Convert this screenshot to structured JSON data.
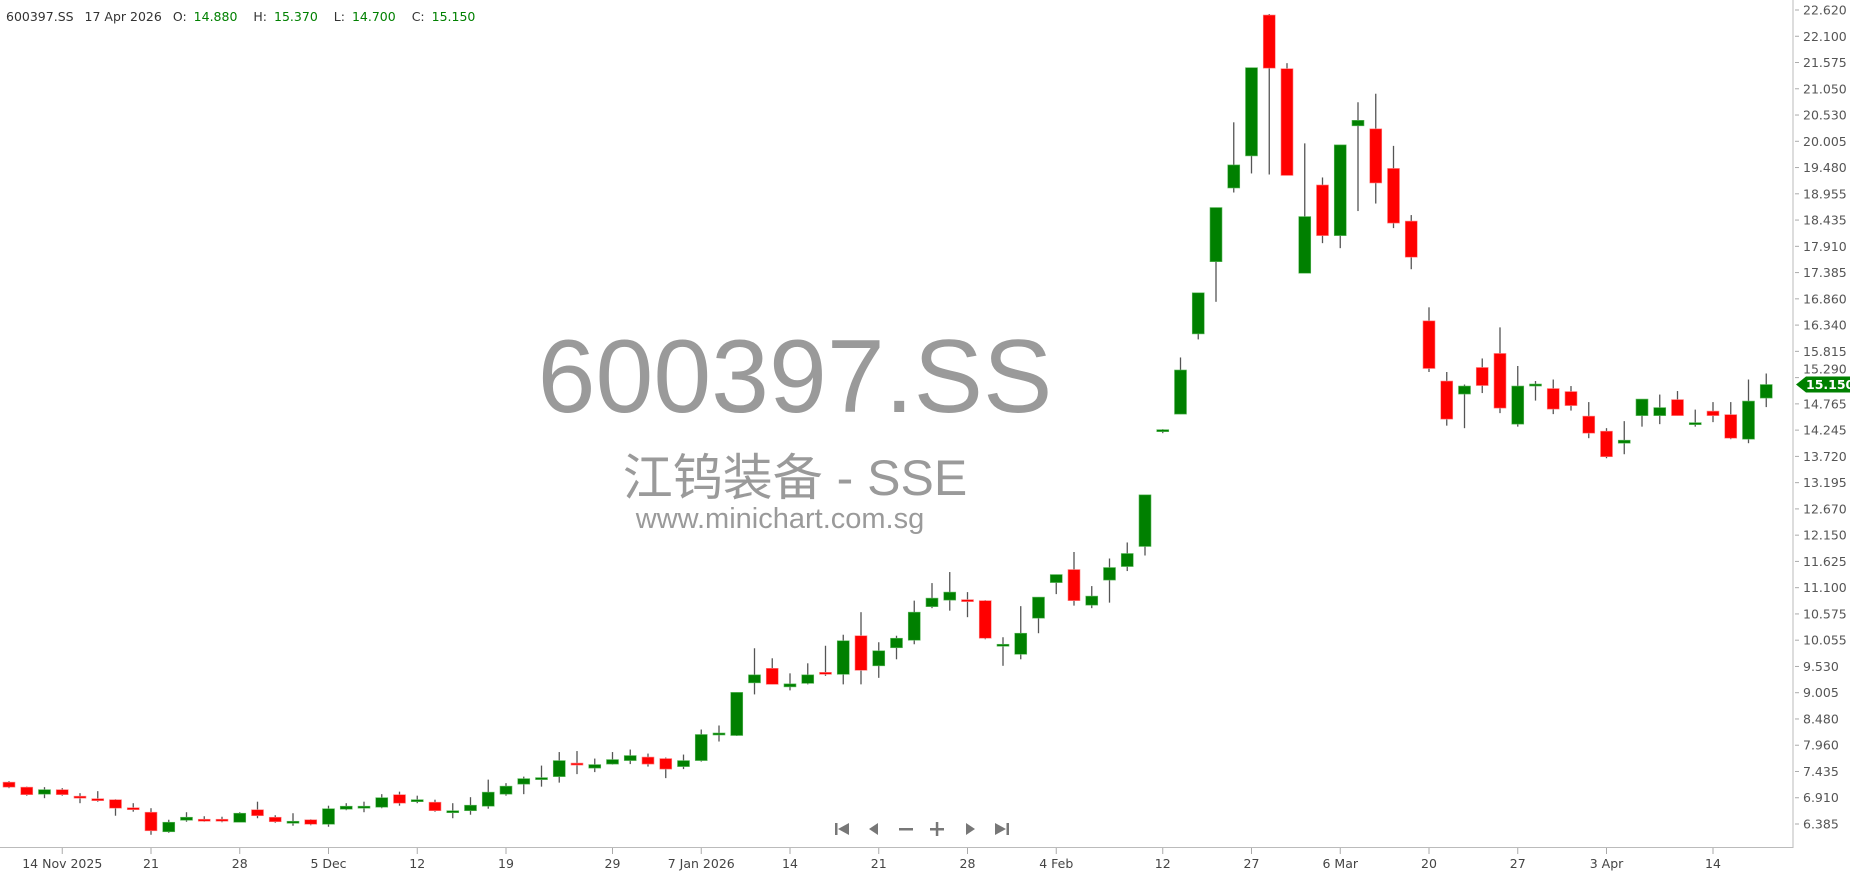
{
  "header": {
    "symbol": "600397.SS",
    "date": "17 Apr 2026",
    "open_label": "O:",
    "open": "14.880",
    "high_label": "H:",
    "high": "15.370",
    "low_label": "L:",
    "low": "14.700",
    "close_label": "C:",
    "close": "15.150"
  },
  "watermark": {
    "symbol": "600397.SS",
    "name": "江钨装备 - SSE",
    "site": "www.minichart.com.sg"
  },
  "navigation": {
    "buttons": [
      {
        "name": "first-icon"
      },
      {
        "name": "previous-icon"
      },
      {
        "name": "zoom-out-icon"
      },
      {
        "name": "zoom-in-icon"
      },
      {
        "name": "next-icon"
      },
      {
        "name": "last-icon"
      }
    ]
  },
  "colors": {
    "up": "#008000",
    "down": "#ff0000",
    "wick": "#555555",
    "last_price_marker": "#008000"
  },
  "chart_data": {
    "type": "candlestick",
    "ylim": [
      6.385,
      22.62
    ],
    "grid": false,
    "y_ticks": [
      "22.620",
      "22.100",
      "21.575",
      "21.050",
      "20.530",
      "20.005",
      "19.480",
      "18.955",
      "18.435",
      "17.910",
      "17.385",
      "16.860",
      "16.340",
      "15.815",
      "15.290",
      "14.765",
      "14.245",
      "13.720",
      "13.195",
      "12.670",
      "12.150",
      "11.625",
      "11.100",
      "10.575",
      "10.055",
      "9.530",
      "9.005",
      "8.480",
      "7.960",
      "7.435",
      "6.910",
      "6.385"
    ],
    "x_ticks": [
      {
        "label": "14 Nov 2025",
        "date": "2025-11-14"
      },
      {
        "label": "21",
        "date": "2025-11-21"
      },
      {
        "label": "28",
        "date": "2025-11-28"
      },
      {
        "label": "5 Dec",
        "date": "2025-12-05"
      },
      {
        "label": "12",
        "date": "2025-12-12"
      },
      {
        "label": "19",
        "date": "2025-12-19"
      },
      {
        "label": "29",
        "date": "2025-12-29"
      },
      {
        "label": "7 Jan 2026",
        "date": "2026-01-07"
      },
      {
        "label": "14",
        "date": "2026-01-14"
      },
      {
        "label": "21",
        "date": "2026-01-21"
      },
      {
        "label": "28",
        "date": "2026-01-28"
      },
      {
        "label": "4 Feb",
        "date": "2026-02-04"
      },
      {
        "label": "12",
        "date": "2026-02-12"
      },
      {
        "label": "27",
        "date": "2026-02-27"
      },
      {
        "label": "6 Mar",
        "date": "2026-03-06"
      },
      {
        "label": "20",
        "date": "2026-03-20"
      },
      {
        "label": "27",
        "date": "2026-03-27"
      },
      {
        "label": "3 Apr",
        "date": "2026-04-03"
      },
      {
        "label": "14",
        "date": "2026-04-14"
      }
    ],
    "last_price": "15.150",
    "columns": [
      "date",
      "open",
      "high",
      "low",
      "close"
    ],
    "candles": [
      [
        "2025-11-11",
        7.22,
        7.24,
        7.1,
        7.12
      ],
      [
        "2025-11-12",
        7.12,
        7.13,
        6.95,
        6.97
      ],
      [
        "2025-11-13",
        6.98,
        7.12,
        6.9,
        7.07
      ],
      [
        "2025-11-14",
        7.07,
        7.1,
        6.95,
        6.97
      ],
      [
        "2025-11-17",
        6.94,
        7.0,
        6.8,
        6.92
      ],
      [
        "2025-11-18",
        6.89,
        7.04,
        6.83,
        6.86
      ],
      [
        "2025-11-19",
        6.87,
        6.88,
        6.55,
        6.7
      ],
      [
        "2025-11-20",
        6.71,
        6.8,
        6.63,
        6.68
      ],
      [
        "2025-11-21",
        6.62,
        6.7,
        6.17,
        6.25
      ],
      [
        "2025-11-24",
        6.23,
        6.47,
        6.21,
        6.42
      ],
      [
        "2025-11-25",
        6.46,
        6.62,
        6.43,
        6.52
      ],
      [
        "2025-11-26",
        6.48,
        6.54,
        6.43,
        6.46
      ],
      [
        "2025-11-27",
        6.48,
        6.53,
        6.42,
        6.46
      ],
      [
        "2025-11-28",
        6.42,
        6.62,
        6.42,
        6.6
      ],
      [
        "2025-12-01",
        6.67,
        6.83,
        6.5,
        6.55
      ],
      [
        "2025-12-02",
        6.52,
        6.56,
        6.41,
        6.43
      ],
      [
        "2025-12-03",
        6.41,
        6.6,
        6.35,
        6.44
      ],
      [
        "2025-12-04",
        6.47,
        6.48,
        6.36,
        6.38
      ],
      [
        "2025-12-05",
        6.38,
        6.75,
        6.33,
        6.69
      ],
      [
        "2025-12-08",
        6.68,
        6.8,
        6.66,
        6.74
      ],
      [
        "2025-12-09",
        6.72,
        6.83,
        6.62,
        6.74
      ],
      [
        "2025-12-10",
        6.72,
        6.98,
        6.7,
        6.91
      ],
      [
        "2025-12-11",
        6.97,
        7.03,
        6.75,
        6.8
      ],
      [
        "2025-12-12",
        6.83,
        6.95,
        6.8,
        6.87
      ],
      [
        "2025-12-15",
        6.82,
        6.87,
        6.63,
        6.65
      ],
      [
        "2025-12-16",
        6.63,
        6.8,
        6.5,
        6.65
      ],
      [
        "2025-12-17",
        6.65,
        6.92,
        6.57,
        6.76
      ],
      [
        "2025-12-18",
        6.74,
        7.27,
        6.69,
        7.02
      ],
      [
        "2025-12-19",
        6.98,
        7.2,
        6.95,
        7.14
      ],
      [
        "2025-12-22",
        7.18,
        7.33,
        6.98,
        7.29
      ],
      [
        "2025-12-23",
        7.29,
        7.55,
        7.13,
        7.31
      ],
      [
        "2025-12-24",
        7.33,
        7.82,
        7.21,
        7.65
      ],
      [
        "2025-12-25",
        7.6,
        7.84,
        7.38,
        7.58
      ],
      [
        "2025-12-26",
        7.5,
        7.69,
        7.42,
        7.57
      ],
      [
        "2025-12-29",
        7.58,
        7.82,
        7.57,
        7.67
      ],
      [
        "2025-12-30",
        7.65,
        7.87,
        7.58,
        7.75
      ],
      [
        "2025-12-31",
        7.72,
        7.79,
        7.53,
        7.58
      ],
      [
        "2026-01-05",
        7.69,
        7.71,
        7.3,
        7.48
      ],
      [
        "2026-01-06",
        7.53,
        7.77,
        7.48,
        7.65
      ],
      [
        "2026-01-07",
        7.65,
        8.27,
        7.63,
        8.17
      ],
      [
        "2026-01-08",
        8.19,
        8.35,
        8.03,
        8.2
      ],
      [
        "2026-01-09",
        8.15,
        9.01,
        8.14,
        9.01
      ],
      [
        "2026-01-12",
        9.2,
        9.89,
        8.97,
        9.36
      ],
      [
        "2026-01-13",
        9.49,
        9.69,
        9.17,
        9.17
      ],
      [
        "2026-01-14",
        9.12,
        9.39,
        9.05,
        9.18
      ],
      [
        "2026-01-15",
        9.19,
        9.59,
        9.17,
        9.36
      ],
      [
        "2026-01-16",
        9.41,
        9.94,
        9.34,
        9.39
      ],
      [
        "2026-01-19",
        9.37,
        10.16,
        9.17,
        10.04
      ],
      [
        "2026-01-20",
        10.14,
        10.61,
        9.17,
        9.45
      ],
      [
        "2026-01-21",
        9.54,
        10.01,
        9.3,
        9.84
      ],
      [
        "2026-01-22",
        9.9,
        10.14,
        9.67,
        10.09
      ],
      [
        "2026-01-23",
        10.05,
        10.84,
        9.97,
        10.61
      ],
      [
        "2026-01-26",
        10.72,
        11.19,
        10.69,
        10.89
      ],
      [
        "2026-01-27",
        10.85,
        11.41,
        10.64,
        11.01
      ],
      [
        "2026-01-28",
        10.86,
        11.01,
        10.51,
        10.84
      ],
      [
        "2026-01-29",
        10.84,
        10.85,
        10.07,
        10.09
      ],
      [
        "2026-01-30",
        9.95,
        10.11,
        9.54,
        9.97
      ],
      [
        "2026-02-02",
        9.77,
        10.73,
        9.67,
        10.19
      ],
      [
        "2026-02-03",
        10.49,
        10.91,
        10.19,
        10.91
      ],
      [
        "2026-02-04",
        11.2,
        11.36,
        10.97,
        11.36
      ],
      [
        "2026-02-05",
        11.46,
        11.81,
        10.74,
        10.84
      ],
      [
        "2026-02-06",
        10.75,
        11.13,
        10.69,
        10.93
      ],
      [
        "2026-02-09",
        11.25,
        11.68,
        10.8,
        11.5
      ],
      [
        "2026-02-10",
        11.52,
        12.0,
        11.43,
        11.78
      ],
      [
        "2026-02-11",
        11.92,
        12.95,
        11.74,
        12.95
      ],
      [
        "2026-02-12",
        14.21,
        14.26,
        14.18,
        14.25
      ],
      [
        "2026-02-13",
        14.56,
        15.69,
        14.56,
        15.44
      ],
      [
        "2026-02-24",
        16.16,
        16.98,
        16.05,
        16.98
      ],
      [
        "2026-02-25",
        17.6,
        18.68,
        16.8,
        18.68
      ],
      [
        "2026-02-26",
        19.07,
        20.38,
        18.98,
        19.53
      ],
      [
        "2026-02-27",
        19.71,
        21.47,
        19.36,
        21.47
      ],
      [
        "2026-03-02",
        22.52,
        22.54,
        19.34,
        21.46
      ],
      [
        "2026-03-03",
        21.45,
        21.56,
        19.32,
        19.32
      ],
      [
        "2026-03-04",
        17.37,
        19.96,
        17.37,
        18.5
      ],
      [
        "2026-03-05",
        19.13,
        19.28,
        17.97,
        18.12
      ],
      [
        "2026-03-06",
        18.12,
        19.93,
        17.87,
        19.93
      ],
      [
        "2026-03-09",
        20.31,
        20.78,
        18.61,
        20.42
      ],
      [
        "2026-03-10",
        20.25,
        20.95,
        18.76,
        19.17
      ],
      [
        "2026-03-11",
        19.46,
        19.91,
        18.27,
        18.37
      ],
      [
        "2026-03-12",
        18.41,
        18.53,
        17.45,
        17.69
      ],
      [
        "2026-03-20",
        16.42,
        16.69,
        15.4,
        15.47
      ],
      [
        "2026-03-23",
        15.22,
        15.4,
        14.33,
        14.46
      ],
      [
        "2026-03-24",
        14.96,
        15.15,
        14.28,
        15.12
      ],
      [
        "2026-03-25",
        15.49,
        15.67,
        14.98,
        15.13
      ],
      [
        "2026-03-26",
        15.77,
        16.29,
        14.58,
        14.68
      ],
      [
        "2026-03-27",
        14.36,
        15.52,
        14.31,
        15.12
      ],
      [
        "2026-03-30",
        15.13,
        15.22,
        14.83,
        15.16
      ],
      [
        "2026-03-31",
        15.07,
        15.25,
        14.56,
        14.66
      ],
      [
        "2026-04-01",
        15.01,
        15.12,
        14.63,
        14.73
      ],
      [
        "2026-04-02",
        14.52,
        14.8,
        14.08,
        14.18
      ],
      [
        "2026-04-03",
        14.22,
        14.28,
        13.68,
        13.71
      ],
      [
        "2026-04-07",
        13.98,
        14.42,
        13.76,
        14.04
      ],
      [
        "2026-04-08",
        14.53,
        14.86,
        14.31,
        14.86
      ],
      [
        "2026-04-09",
        14.53,
        14.95,
        14.36,
        14.69
      ],
      [
        "2026-04-10",
        14.85,
        15.02,
        14.53,
        14.53
      ],
      [
        "2026-04-13",
        14.36,
        14.65,
        14.31,
        14.39
      ],
      [
        "2026-04-14",
        14.62,
        14.8,
        14.4,
        14.53
      ],
      [
        "2026-04-15",
        14.55,
        14.8,
        14.06,
        14.08
      ],
      [
        "2026-04-16",
        14.06,
        15.25,
        13.98,
        14.82
      ],
      [
        "2026-04-17",
        14.88,
        15.37,
        14.7,
        15.15
      ]
    ]
  }
}
